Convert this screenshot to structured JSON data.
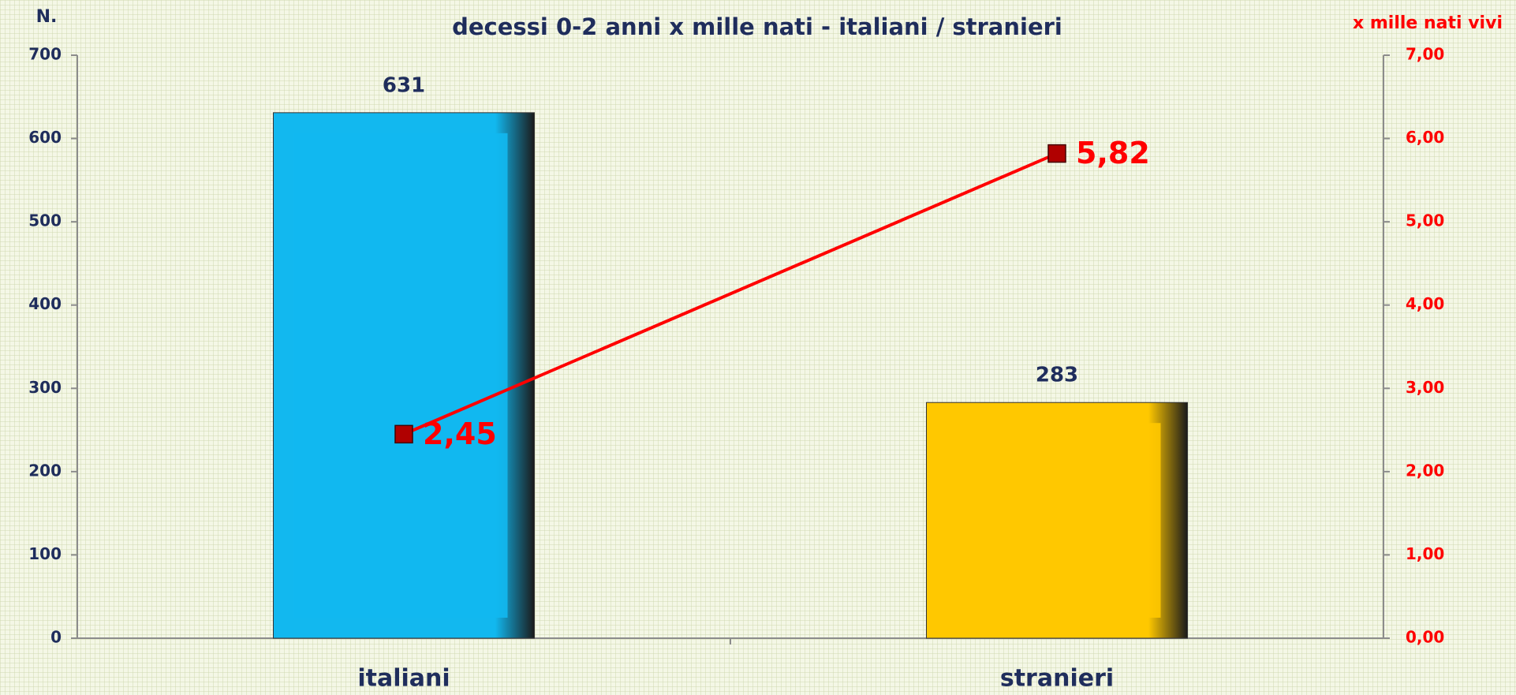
{
  "chart_data": {
    "type": "bar",
    "title": "decessi 0-2 anni x mille nati  -  italiani / stranieri",
    "y_label": "N.",
    "y2_label": "x mille nati vivi",
    "categories": [
      "italiani",
      "stranieri"
    ],
    "series": [
      {
        "type": "bar",
        "colors": [
          "#12b8ef",
          "#ffc800"
        ],
        "values": [
          631,
          283
        ]
      },
      {
        "type": "line",
        "axis": "y2",
        "color": "#ff0000",
        "marker_color": "#b00000",
        "values": [
          2.45,
          5.82
        ],
        "value_labels": [
          "2,45",
          "5,82"
        ]
      }
    ],
    "ylim": [
      0,
      700
    ],
    "yticks": [
      0,
      100,
      200,
      300,
      400,
      500,
      600,
      700
    ],
    "y2lim": [
      0,
      7
    ],
    "y2ticks": [
      {
        "value": 0,
        "label": "0,00"
      },
      {
        "value": 1,
        "label": "1,00"
      },
      {
        "value": 2,
        "label": "2,00"
      },
      {
        "value": 3,
        "label": "3,00"
      },
      {
        "value": 4,
        "label": "4,00"
      },
      {
        "value": 5,
        "label": "5,00"
      },
      {
        "value": 6,
        "label": "6,00"
      },
      {
        "value": 7,
        "label": "7,00"
      }
    ]
  }
}
